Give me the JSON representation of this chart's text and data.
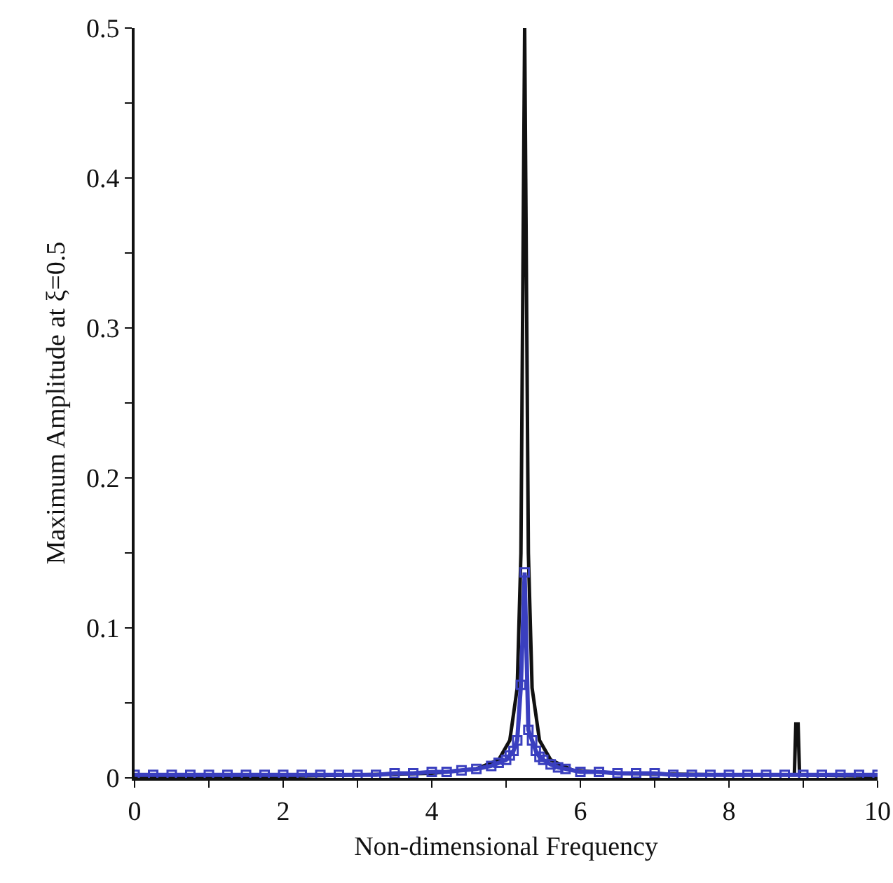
{
  "chart_data": {
    "type": "line",
    "xlabel": "Non-dimensional Frequency",
    "ylabel": "Maximum Amplitude at ξ=0.5",
    "xlim": [
      0,
      10
    ],
    "ylim": [
      0,
      0.5
    ],
    "xticks": [
      0,
      {
        "value": 1,
        "label": null
      },
      2,
      {
        "value": 3,
        "label": null
      },
      4,
      {
        "value": 5,
        "label": null
      },
      6,
      {
        "value": 7,
        "label": null
      },
      8,
      {
        "value": 9,
        "label": null
      },
      10
    ],
    "yticks": [
      0,
      {
        "value": 0.05,
        "label": null
      },
      0.1,
      {
        "value": 0.15,
        "label": null
      },
      0.2,
      {
        "value": 0.25,
        "label": null
      },
      0.3,
      {
        "value": 0.35,
        "label": null
      },
      0.4,
      {
        "value": 0.45,
        "label": null
      },
      0.5
    ],
    "grid": false,
    "series": [
      {
        "color": "#111111",
        "marker": "none",
        "x": [
          0,
          2,
          4,
          4.6,
          4.9,
          5.05,
          5.15,
          5.2,
          5.25,
          5.3,
          5.35,
          5.45,
          5.6,
          5.9,
          6.5,
          8,
          8.88,
          8.9,
          8.93,
          8.95,
          10
        ],
        "values": [
          0.001,
          0.001,
          0.003,
          0.006,
          0.012,
          0.025,
          0.06,
          0.15,
          0.5,
          0.15,
          0.06,
          0.025,
          0.012,
          0.005,
          0.003,
          0.002,
          0.002,
          0.036,
          0.036,
          0.002,
          0.001
        ]
      },
      {
        "color": "#3a3fbf",
        "marker": "square",
        "x": [
          0,
          0.25,
          0.5,
          0.75,
          1,
          1.25,
          1.5,
          1.75,
          2,
          2.25,
          2.5,
          2.75,
          3,
          3.25,
          3.5,
          3.75,
          4,
          4.2,
          4.4,
          4.6,
          4.8,
          4.9,
          5,
          5.05,
          5.1,
          5.15,
          5.2,
          5.25,
          5.3,
          5.35,
          5.4,
          5.45,
          5.5,
          5.6,
          5.7,
          5.8,
          6,
          6.25,
          6.5,
          6.75,
          7,
          7.25,
          7.5,
          7.75,
          8,
          8.25,
          8.5,
          8.75,
          9,
          9.25,
          9.5,
          9.75,
          10
        ],
        "values": [
          0.002,
          0.002,
          0.002,
          0.002,
          0.002,
          0.002,
          0.002,
          0.002,
          0.002,
          0.002,
          0.002,
          0.002,
          0.002,
          0.002,
          0.003,
          0.003,
          0.004,
          0.004,
          0.005,
          0.006,
          0.008,
          0.01,
          0.012,
          0.015,
          0.018,
          0.025,
          0.062,
          0.137,
          0.032,
          0.025,
          0.018,
          0.014,
          0.012,
          0.009,
          0.007,
          0.006,
          0.004,
          0.004,
          0.003,
          0.003,
          0.003,
          0.002,
          0.002,
          0.002,
          0.002,
          0.002,
          0.002,
          0.002,
          0.002,
          0.002,
          0.002,
          0.002,
          0.002
        ]
      }
    ]
  }
}
